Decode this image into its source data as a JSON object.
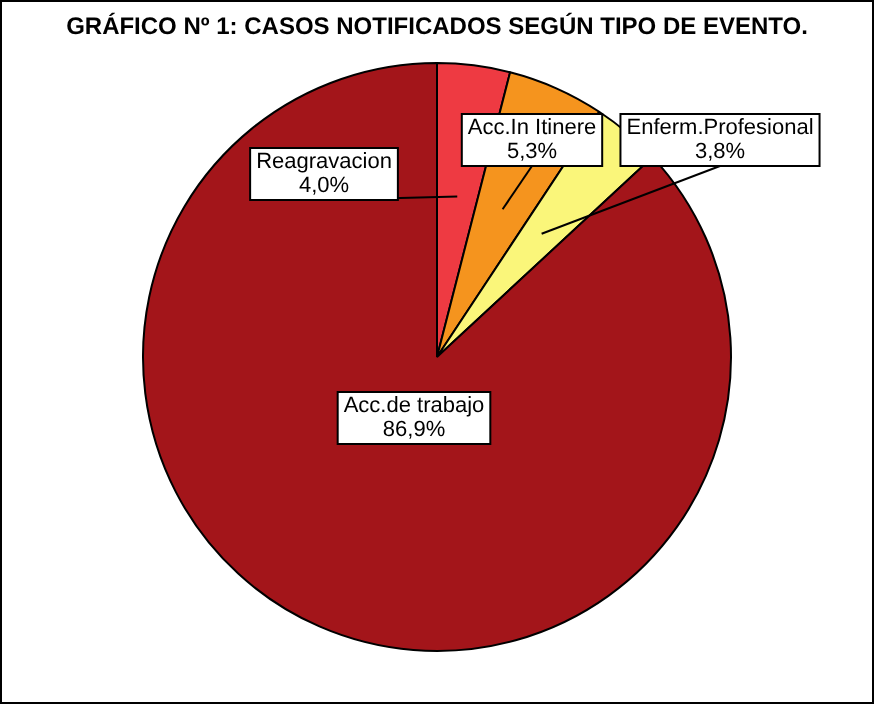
{
  "chart_data": {
    "type": "pie",
    "title": "GRÁFICO Nº 1: CASOS NOTIFICADOS SEGÚN TIPO DE EVENTO.",
    "categories": [
      "Reagravacion",
      "Acc.In Itinere",
      "Enferm.Profesional",
      "Acc.de trabajo"
    ],
    "values": [
      4.0,
      5.3,
      3.8,
      86.9
    ],
    "colors": [
      "#ee3a42",
      "#f5941e",
      "#faf67a",
      "#a3151a"
    ],
    "value_labels": [
      "4,0%",
      "5,3%",
      "3,8%",
      "86,9%"
    ],
    "legend": false
  }
}
